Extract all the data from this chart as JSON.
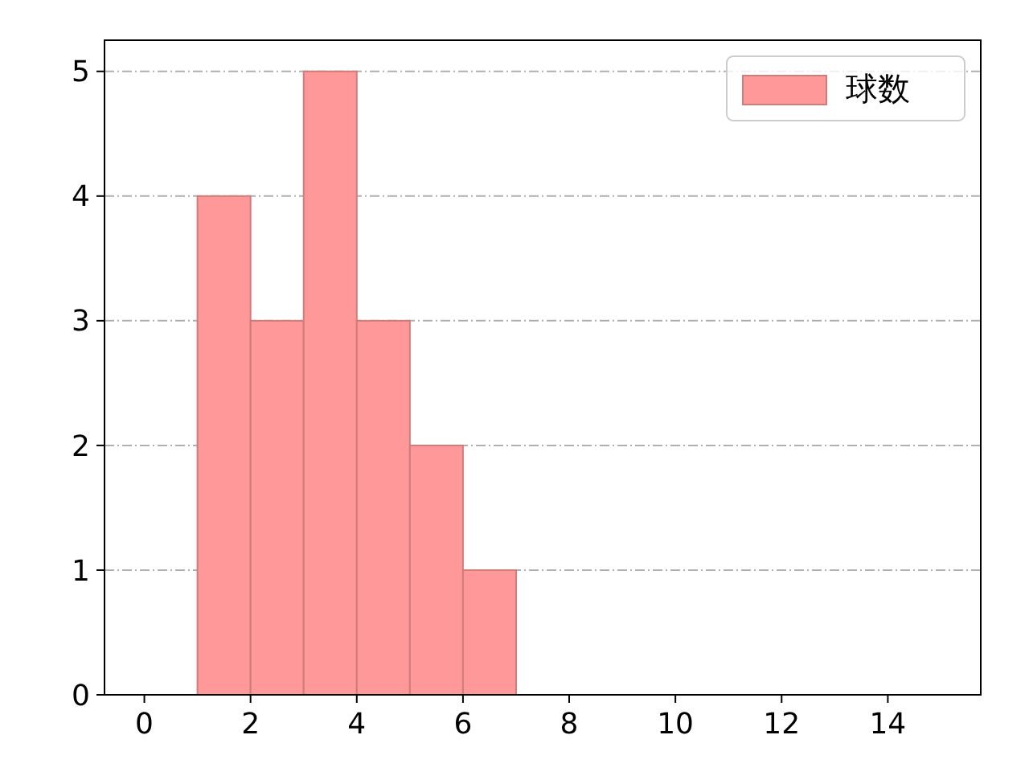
{
  "chart_data": {
    "type": "histogram",
    "bins": [
      1,
      2,
      3,
      4,
      5,
      6,
      7
    ],
    "series": [
      {
        "name": "球数",
        "color": "#ff9999",
        "values": [
          4,
          3,
          5,
          3,
          2,
          1
        ]
      }
    ],
    "xlim": [
      -0.75,
      15.75
    ],
    "xticks": [
      0,
      2,
      4,
      6,
      8,
      10,
      12,
      14
    ],
    "ylim": [
      0,
      5.25
    ],
    "yticks": [
      0,
      1,
      2,
      3,
      4,
      5
    ],
    "grid": "y",
    "legend": "top right"
  }
}
